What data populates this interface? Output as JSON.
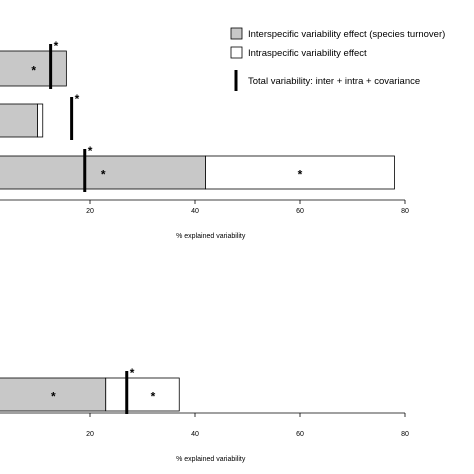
{
  "chart_data": [
    {
      "type": "bar",
      "orientation": "horizontal",
      "stacked": true,
      "xlabel": "% explained variability",
      "xticks": [
        20,
        40,
        60,
        80
      ],
      "xlim": [
        0,
        90
      ],
      "rows": [
        {
          "inter": 15.5,
          "intra": 0,
          "total": 12.5,
          "sig_inter": "*",
          "sig_intra": "",
          "sig_total": "*"
        },
        {
          "inter": 10,
          "intra": 1,
          "total": 16.5,
          "sig_inter": "",
          "sig_intra": "",
          "sig_total": "*"
        },
        {
          "inter": 42,
          "intra": 36,
          "total": 19,
          "sig_inter": "*",
          "sig_intra": "*",
          "sig_total": "*"
        }
      ],
      "legend": {
        "placement": "top-right",
        "entries": [
          {
            "key": "inter",
            "label": "Interspecific variability effect (species turnover)",
            "color": "#c8c8c8"
          },
          {
            "key": "intra",
            "label": "Intraspecific variability effect",
            "color": "#ffffff"
          },
          {
            "key": "total",
            "label": "Total variability: inter + intra + covariance",
            "color": "#000000"
          }
        ]
      }
    },
    {
      "type": "bar",
      "orientation": "horizontal",
      "stacked": true,
      "xlabel": "% explained variability",
      "xticks": [
        20,
        40,
        60,
        80
      ],
      "xlim": [
        0,
        90
      ],
      "rows": [
        {
          "inter": 0,
          "intra": 0,
          "total": 0.5,
          "sig_inter": "",
          "sig_intra": "",
          "sig_total": ""
        },
        {
          "inter": 23,
          "intra": 14,
          "total": 27,
          "sig_inter": "*",
          "sig_intra": "*",
          "sig_total": "*"
        }
      ]
    }
  ]
}
